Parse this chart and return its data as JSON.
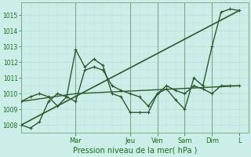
{
  "background_color": "#cceee8",
  "grid_color": "#bbddd6",
  "line_color": "#1a6e1a",
  "dark_line_color": "#2d5a2d",
  "ylim": [
    1007.5,
    1015.8
  ],
  "yticks": [
    1008,
    1009,
    1010,
    1011,
    1012,
    1013,
    1014,
    1015
  ],
  "xlabel": "Pression niveau de la mer( hPa )",
  "day_labels": [
    "Mar",
    "Jeu",
    "Ven",
    "Sam",
    "Dim",
    "L"
  ],
  "day_positions": [
    24,
    48,
    60,
    72,
    84,
    96
  ],
  "xlim": [
    0,
    100
  ],
  "series": [
    {
      "x": [
        0,
        4,
        8,
        12,
        16,
        20,
        24,
        28,
        32,
        36,
        40,
        44,
        48,
        52,
        56,
        60,
        64,
        68,
        72,
        76,
        80,
        84,
        88,
        92,
        96
      ],
      "y": [
        1008.0,
        1007.8,
        1008.2,
        1009.5,
        1010.0,
        1009.8,
        1012.8,
        1011.7,
        1012.2,
        1011.8,
        1010.0,
        1009.8,
        1008.8,
        1008.8,
        1008.8,
        1010.0,
        1010.3,
        1009.6,
        1009.0,
        1011.0,
        1010.5,
        1013.0,
        1015.2,
        1015.4,
        1015.3
      ],
      "marker": "+",
      "linewidth": 1.0
    },
    {
      "x": [
        0,
        4,
        8,
        12,
        16,
        20,
        24,
        28,
        32,
        36,
        40,
        44,
        48,
        52,
        56,
        60,
        64,
        68,
        72,
        76,
        80,
        84,
        88,
        92,
        96
      ],
      "y": [
        1009.5,
        1009.8,
        1010.0,
        1009.8,
        1009.2,
        1009.8,
        1009.5,
        1011.5,
        1011.7,
        1011.5,
        1010.5,
        1010.2,
        1010.0,
        1009.8,
        1009.2,
        1010.0,
        1010.5,
        1010.2,
        1010.0,
        1010.5,
        1010.3,
        1010.0,
        1010.5,
        1010.5,
        1010.5
      ],
      "marker": "+",
      "linewidth": 1.0
    },
    {
      "x": [
        0,
        96
      ],
      "y": [
        1008.0,
        1015.3
      ],
      "marker": null,
      "linewidth": 1.2
    },
    {
      "x": [
        0,
        24,
        96
      ],
      "y": [
        1009.5,
        1010.0,
        1010.5
      ],
      "marker": null,
      "linewidth": 1.0
    }
  ]
}
